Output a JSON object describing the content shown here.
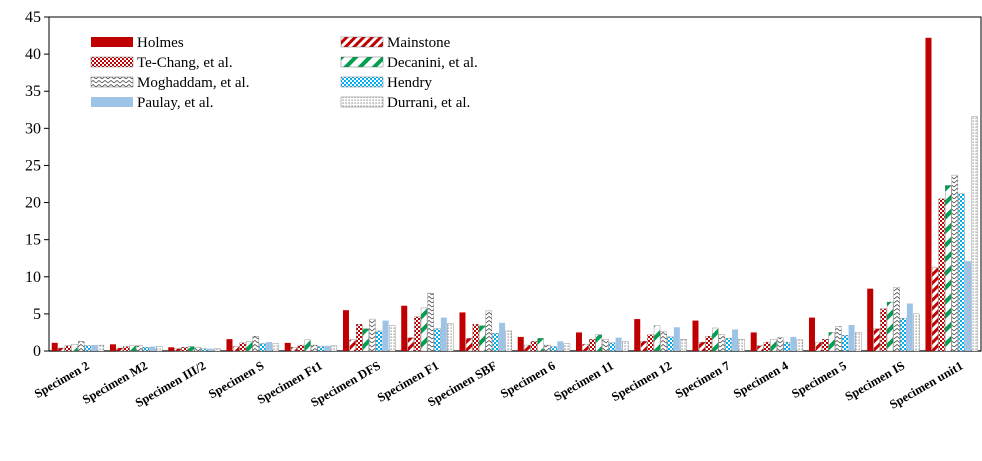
{
  "chart_data": {
    "type": "bar",
    "title": "",
    "xlabel": "",
    "ylabel": "",
    "ylim": [
      0,
      45
    ],
    "yticks": [
      0,
      5,
      10,
      15,
      20,
      25,
      30,
      35,
      40,
      45
    ],
    "grid": false,
    "legend": "top-left",
    "categories": [
      "Specimen 2",
      "Specimen  M2",
      "Specimen  III/2",
      "Specimen  S",
      "Specimen  Ft1",
      "Specimen  DFS",
      "Specimen  F1",
      "Specimen  SBF",
      "Specimen  6",
      "Specimen  11",
      "Specimen  12",
      "Specimen  7",
      "Specimen  4",
      "Specimen  5",
      "Specimen  IS",
      "Specimen  unit1"
    ],
    "series": [
      {
        "name": "Holmes",
        "pattern": "solid",
        "color": "#c00000",
        "values": [
          1.1,
          0.9,
          0.5,
          1.6,
          1.1,
          5.5,
          6.1,
          5.2,
          1.9,
          2.5,
          4.3,
          4.1,
          2.5,
          4.5,
          8.4,
          42.2
        ]
      },
      {
        "name": "Mainstone",
        "pattern": "diag",
        "color": "#c00000",
        "values": [
          0.4,
          0.4,
          0.3,
          0.6,
          0.5,
          1.5,
          1.8,
          1.7,
          0.8,
          0.9,
          1.3,
          1.2,
          0.7,
          1.2,
          3.0,
          11.2
        ]
      },
      {
        "name": "Te-Chang, et al.",
        "pattern": "checker",
        "color": "#c00000",
        "values": [
          0.7,
          0.6,
          0.5,
          1.1,
          0.8,
          3.6,
          4.6,
          3.6,
          1.3,
          1.6,
          2.2,
          2.0,
          1.2,
          1.6,
          5.7,
          20.5
        ]
      },
      {
        "name": "Decanini, et al.",
        "pattern": "wide-diag",
        "color": "#00a050",
        "values": [
          0.9,
          0.7,
          0.6,
          1.3,
          1.5,
          3.0,
          5.8,
          3.4,
          1.7,
          2.2,
          3.4,
          3.1,
          1.6,
          2.5,
          6.6,
          22.3
        ]
      },
      {
        "name": "Moghaddam, et al.",
        "pattern": "zigzag",
        "color": "#404040",
        "values": [
          1.3,
          0.7,
          0.5,
          2.0,
          0.8,
          4.3,
          7.8,
          5.4,
          0.8,
          1.6,
          2.6,
          2.2,
          1.8,
          3.3,
          8.6,
          23.7
        ]
      },
      {
        "name": "Hendry",
        "pattern": "blue-check",
        "color": "#00b0f0",
        "values": [
          0.7,
          0.5,
          0.3,
          1.0,
          0.6,
          2.7,
          3.0,
          2.4,
          0.6,
          1.1,
          1.9,
          1.7,
          1.2,
          2.1,
          4.4,
          21.2
        ]
      },
      {
        "name": "Paulay, et al.",
        "pattern": "solid",
        "color": "#9dc3e6",
        "values": [
          0.8,
          0.6,
          0.3,
          1.2,
          0.7,
          4.1,
          4.5,
          3.8,
          1.3,
          1.8,
          3.2,
          2.9,
          1.9,
          3.5,
          6.4,
          12.1
        ]
      },
      {
        "name": "Durrani, et al.",
        "pattern": "dots",
        "color": "#808080",
        "values": [
          0.8,
          0.6,
          0.3,
          1.0,
          0.7,
          3.4,
          3.7,
          2.7,
          1.0,
          1.3,
          1.6,
          1.6,
          1.5,
          2.5,
          5.0,
          31.6
        ]
      }
    ]
  }
}
